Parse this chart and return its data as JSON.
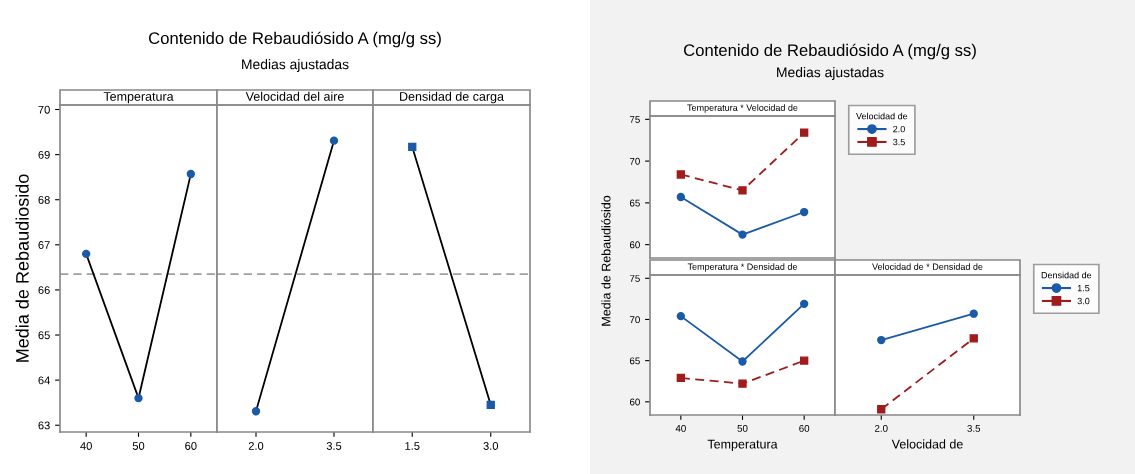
{
  "chart_data": [
    {
      "type": "other",
      "title": "Contenido de Rebaudiósido A (mg/g ss)",
      "subtitle": "Medias ajustadas"
    },
    {
      "type": "line",
      "title": "Temperatura",
      "ylabel": "Media de Rebaudiosido",
      "categories": [
        "40",
        "50",
        "60"
      ],
      "ylim": [
        62.85,
        70.1
      ],
      "yticks": [
        63,
        64,
        65,
        66,
        67,
        68,
        69,
        70
      ],
      "marker": "circle",
      "series": [
        {
          "color": "#1a5aa8",
          "values": [
            66.8,
            63.6,
            68.57
          ]
        }
      ],
      "ref_lines": [
        {
          "axis": "y",
          "value": 66.35,
          "color": "#a0a0a0",
          "line_style": "dashed"
        }
      ]
    },
    {
      "type": "line",
      "title": "Velocidad del aire",
      "categories": [
        "2.0",
        "3.5"
      ],
      "ylim": [
        62.85,
        70.1
      ],
      "yticks": [
        63,
        64,
        65,
        66,
        67,
        68,
        69,
        70
      ],
      "marker": "circle",
      "tick_labels": "x",
      "series": [
        {
          "color": "#1a5aa8",
          "values": [
            63.31,
            69.31
          ]
        }
      ],
      "ref_lines": [
        {
          "axis": "y",
          "value": 66.35,
          "color": "#a0a0a0",
          "line_style": "dashed"
        }
      ]
    },
    {
      "type": "line",
      "title": "Densidad de carga",
      "categories": [
        "1.5",
        "3.0"
      ],
      "ylim": [
        62.85,
        70.1
      ],
      "yticks": [
        63,
        64,
        65,
        66,
        67,
        68,
        69,
        70
      ],
      "marker": "square",
      "tick_labels": "x",
      "series": [
        {
          "color": "#1a5aa8",
          "values": [
            69.17,
            63.45
          ]
        }
      ],
      "ref_lines": [
        {
          "axis": "y",
          "value": 66.35,
          "color": "#a0a0a0",
          "line_style": "dashed"
        }
      ]
    },
    {
      "type": "other",
      "title": "Contenido de Rebaudiósido A (mg/g ss)",
      "subtitle": "Medias ajustadas"
    },
    {
      "type": "line",
      "title": "Temperatura * Velocidad de",
      "categories": [
        "40",
        "50",
        "60"
      ],
      "ylim": [
        58.4,
        75.4
      ],
      "yticks": [
        60,
        65,
        70,
        75
      ],
      "tick_labels": "y",
      "legend": "right",
      "legend_title": "Velocidad de",
      "series": [
        {
          "name": "2.0",
          "color": "#1a5aa8",
          "marker": "circle",
          "line_style": "solid",
          "values": [
            65.7,
            61.2,
            63.9
          ]
        },
        {
          "name": "3.5",
          "color": "#a01c1c",
          "marker": "square",
          "line_style": "dashed",
          "values": [
            68.4,
            66.5,
            73.4
          ]
        }
      ]
    },
    {
      "type": "line",
      "title": "Temperatura * Densidad de",
      "xlabel": "Temperatura",
      "ylabel": "Media de Rebaudiósido",
      "categories": [
        "40",
        "50",
        "60"
      ],
      "ylim": [
        58.4,
        75.4
      ],
      "yticks": [
        60,
        65,
        70,
        75
      ],
      "series": [
        {
          "color": "#1a5aa8",
          "marker": "circle",
          "line_style": "solid",
          "values": [
            70.4,
            64.9,
            71.9
          ]
        },
        {
          "color": "#a01c1c",
          "marker": "square",
          "line_style": "dashed",
          "values": [
            62.9,
            62.2,
            65.0
          ]
        }
      ]
    },
    {
      "type": "line",
      "title": "Velocidad de * Densidad de",
      "xlabel": "Velocidad de",
      "categories": [
        "2.0",
        "3.5"
      ],
      "ylim": [
        58.4,
        75.4
      ],
      "yticks": [
        60,
        65,
        70,
        75
      ],
      "tick_labels": "x",
      "legend": "right",
      "legend_title": "Densidad de",
      "series": [
        {
          "name": "1.5",
          "color": "#1a5aa8",
          "marker": "circle",
          "line_style": "solid",
          "values": [
            67.5,
            70.7
          ]
        },
        {
          "name": "3.0",
          "color": "#a01c1c",
          "marker": "square",
          "line_style": "dashed",
          "values": [
            59.1,
            67.7
          ]
        }
      ]
    }
  ]
}
